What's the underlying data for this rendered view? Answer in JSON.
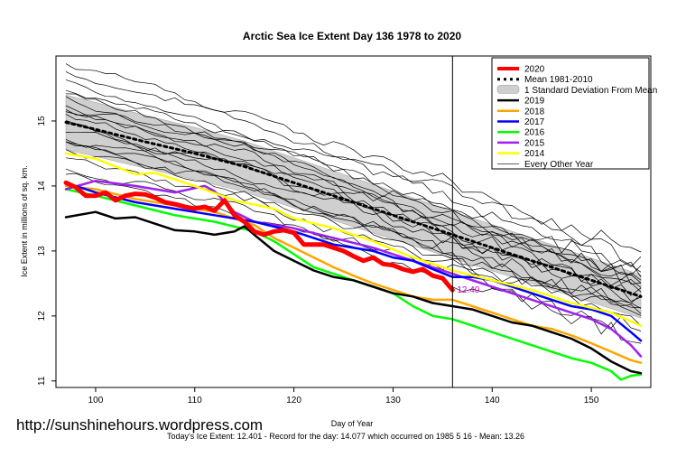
{
  "chart_data": {
    "type": "line",
    "title": "Arctic Sea Ice Extent Day 136 1978 to 2020",
    "xlabel": "Day of Year",
    "ylabel": "Ice Extent in millions of sq. km.",
    "xlim": [
      96,
      156
    ],
    "ylim": [
      10.9,
      16.0
    ],
    "x_ticks": [
      100,
      110,
      120,
      130,
      140,
      150
    ],
    "y_ticks": [
      11,
      12,
      13,
      14,
      15
    ],
    "vline_day": 136,
    "current_label": "12.40",
    "legend": {
      "placement": "top-right",
      "entries": [
        {
          "label": "2020",
          "color": "#ff0000",
          "style": "thick"
        },
        {
          "label": "Mean 1981-2010",
          "color": "#000000",
          "style": "dotted"
        },
        {
          "label": "1 Standard Deviation From Mean",
          "color": "#cccccc",
          "style": "band"
        },
        {
          "label": "2019",
          "color": "#000000",
          "style": "line"
        },
        {
          "label": "2018",
          "color": "#ffa500",
          "style": "line"
        },
        {
          "label": "2017",
          "color": "#0000ff",
          "style": "line"
        },
        {
          "label": "2016",
          "color": "#00ff00",
          "style": "line"
        },
        {
          "label": "2015",
          "color": "#a020f0",
          "style": "line"
        },
        {
          "label": "2014",
          "color": "#ffff00",
          "style": "line"
        },
        {
          "label": "Every Other Year",
          "color": "#000000",
          "style": "thin"
        }
      ]
    },
    "series": [
      {
        "name": "Mean 1981-2010",
        "color": "#000000",
        "style": "dotted",
        "x": [
          97,
          100,
          105,
          110,
          115,
          120,
          125,
          130,
          135,
          140,
          145,
          150,
          155
        ],
        "y": [
          14.98,
          14.87,
          14.68,
          14.5,
          14.3,
          14.05,
          13.8,
          13.55,
          13.3,
          13.05,
          12.8,
          12.55,
          12.3
        ]
      },
      {
        "name": "2020",
        "color": "#ff0000",
        "style": "thick",
        "x": [
          97,
          98,
          99,
          100,
          101,
          102,
          103,
          104,
          105,
          106,
          107,
          108,
          109,
          110,
          111,
          112,
          113,
          114,
          115,
          116,
          117,
          118,
          119,
          120,
          121,
          122,
          123,
          124,
          125,
          126,
          127,
          128,
          129,
          130,
          131,
          132,
          133,
          134,
          135,
          136
        ],
        "y": [
          14.05,
          13.98,
          13.85,
          13.85,
          13.9,
          13.78,
          13.85,
          13.88,
          13.87,
          13.82,
          13.75,
          13.72,
          13.68,
          13.65,
          13.68,
          13.62,
          13.78,
          13.55,
          13.45,
          13.3,
          13.25,
          13.3,
          13.32,
          13.28,
          13.1,
          13.1,
          13.1,
          13.05,
          13.0,
          12.92,
          12.85,
          12.9,
          12.8,
          12.78,
          12.72,
          12.68,
          12.72,
          12.62,
          12.58,
          12.4
        ]
      },
      {
        "name": "2019",
        "color": "#000000",
        "style": "line",
        "x": [
          97,
          100,
          102,
          104,
          106,
          108,
          110,
          112,
          114,
          115,
          116,
          118,
          120,
          122,
          124,
          126,
          128,
          130,
          132,
          134,
          136,
          138,
          140,
          142,
          144,
          146,
          148,
          150,
          152,
          154,
          155
        ],
        "y": [
          13.52,
          13.6,
          13.5,
          13.52,
          13.42,
          13.32,
          13.3,
          13.25,
          13.3,
          13.38,
          13.25,
          13.0,
          12.85,
          12.7,
          12.6,
          12.55,
          12.45,
          12.35,
          12.3,
          12.2,
          12.15,
          12.1,
          12.0,
          11.9,
          11.85,
          11.75,
          11.65,
          11.5,
          11.3,
          11.15,
          11.12
        ]
      },
      {
        "name": "2018",
        "color": "#ffa500",
        "style": "line",
        "x": [
          97,
          100,
          104,
          108,
          112,
          116,
          118,
          120,
          122,
          124,
          126,
          128,
          130,
          132,
          134,
          136,
          138,
          140,
          142,
          144,
          146,
          148,
          150,
          152,
          154,
          155
        ],
        "y": [
          14.0,
          13.95,
          13.8,
          13.7,
          13.6,
          13.4,
          13.2,
          13.05,
          12.9,
          12.75,
          12.62,
          12.5,
          12.4,
          12.3,
          12.25,
          12.25,
          12.15,
          12.05,
          11.95,
          11.85,
          11.8,
          11.7,
          11.58,
          11.45,
          11.32,
          11.28
        ]
      },
      {
        "name": "2017",
        "color": "#0000ff",
        "style": "line",
        "x": [
          97,
          100,
          104,
          108,
          112,
          116,
          120,
          124,
          128,
          130,
          132,
          134,
          136,
          138,
          140,
          142,
          144,
          146,
          148,
          150,
          152,
          154,
          155
        ],
        "y": [
          14.05,
          13.9,
          13.75,
          13.65,
          13.55,
          13.45,
          13.3,
          13.1,
          13.0,
          12.9,
          12.85,
          12.72,
          12.6,
          12.6,
          12.55,
          12.45,
          12.35,
          12.25,
          12.15,
          12.1,
          12.0,
          11.75,
          11.62
        ]
      },
      {
        "name": "2016",
        "color": "#00ff00",
        "style": "line",
        "x": [
          97,
          100,
          104,
          108,
          112,
          116,
          118,
          120,
          122,
          124,
          126,
          128,
          130,
          132,
          134,
          136,
          138,
          140,
          142,
          144,
          146,
          148,
          150,
          152,
          153,
          154,
          155
        ],
        "y": [
          13.95,
          13.85,
          13.7,
          13.55,
          13.45,
          13.3,
          13.15,
          12.95,
          12.75,
          12.65,
          12.55,
          12.45,
          12.35,
          12.15,
          12.0,
          11.95,
          11.85,
          11.75,
          11.65,
          11.55,
          11.45,
          11.35,
          11.28,
          11.15,
          11.02,
          11.08,
          11.1
        ]
      },
      {
        "name": "2015",
        "color": "#a020f0",
        "style": "line",
        "x": [
          97,
          100,
          104,
          108,
          111,
          112,
          114,
          116,
          120,
          124,
          128,
          132,
          136,
          140,
          144,
          148,
          150,
          152,
          154,
          155
        ],
        "y": [
          13.95,
          14.08,
          14.0,
          13.9,
          14.0,
          13.92,
          13.6,
          13.45,
          13.35,
          13.2,
          13.05,
          12.85,
          12.65,
          12.45,
          12.25,
          12.05,
          11.95,
          11.8,
          11.55,
          11.38
        ]
      },
      {
        "name": "2014",
        "color": "#ffff00",
        "style": "line",
        "x": [
          97,
          100,
          102,
          104,
          106,
          108,
          110,
          114,
          118,
          120,
          124,
          128,
          132,
          136,
          140,
          144,
          148,
          152,
          155
        ],
        "y": [
          14.5,
          14.42,
          14.3,
          14.18,
          14.2,
          14.1,
          14.0,
          13.78,
          13.65,
          13.5,
          13.35,
          13.15,
          12.9,
          12.7,
          12.55,
          12.4,
          12.2,
          12.05,
          11.85
        ]
      }
    ]
  },
  "footer": {
    "watermark": "http://sunshinehours.wordpress.com",
    "summary": "Today's Ice Extent: 12.401  - Record for the day: 14.077 which occurred on 1985 5 16  - Mean: 13.26"
  }
}
